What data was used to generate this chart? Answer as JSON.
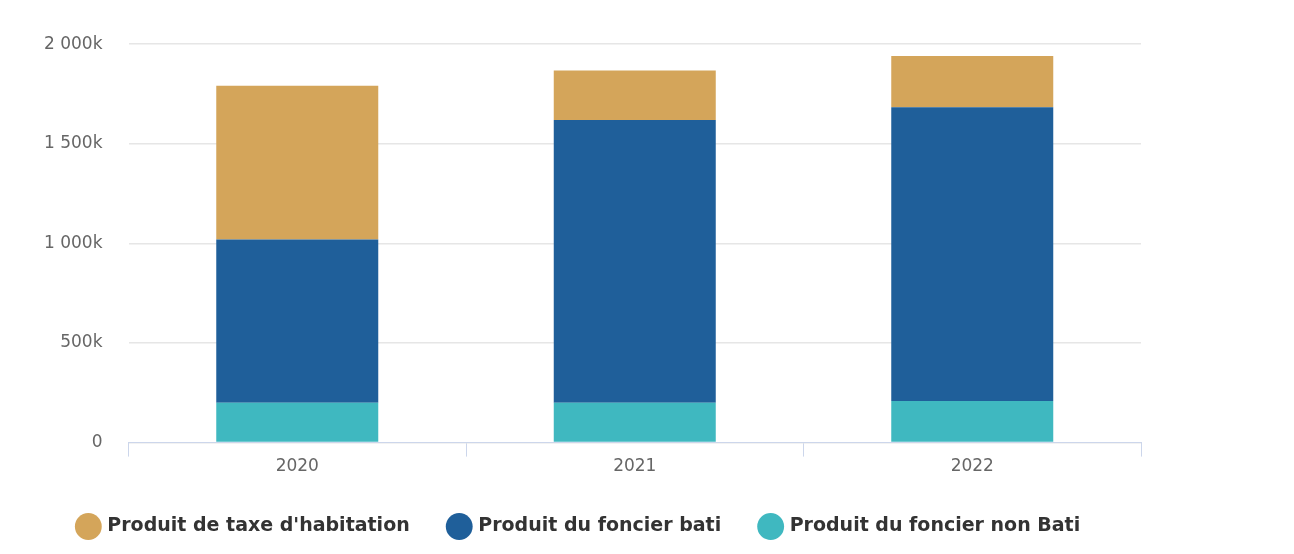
{
  "chart_data": {
    "type": "bar",
    "stacked": true,
    "categories": [
      "2020",
      "2021",
      "2022"
    ],
    "series": [
      {
        "name": "Produit du foncier non Bati",
        "color": "#3fb8c0",
        "values": [
          200000,
          200000,
          209000
        ]
      },
      {
        "name": "Produit du foncier bati",
        "color": "#1f5f9a",
        "values": [
          820000,
          1419000,
          1474000
        ]
      },
      {
        "name": "Produit de taxe d'habitation",
        "color": "#d4a55a",
        "values": [
          771000,
          249000,
          258000
        ]
      }
    ],
    "ylim": [
      0,
      2000000
    ],
    "yticks": [
      {
        "value": 0,
        "label": "0"
      },
      {
        "value": 500000,
        "label": "500k"
      },
      {
        "value": 1000000,
        "label": "1 000k"
      },
      {
        "value": 1500000,
        "label": "1 500k"
      },
      {
        "value": 2000000,
        "label": "2 000k"
      }
    ],
    "grid": "y",
    "legend": "bottom"
  }
}
